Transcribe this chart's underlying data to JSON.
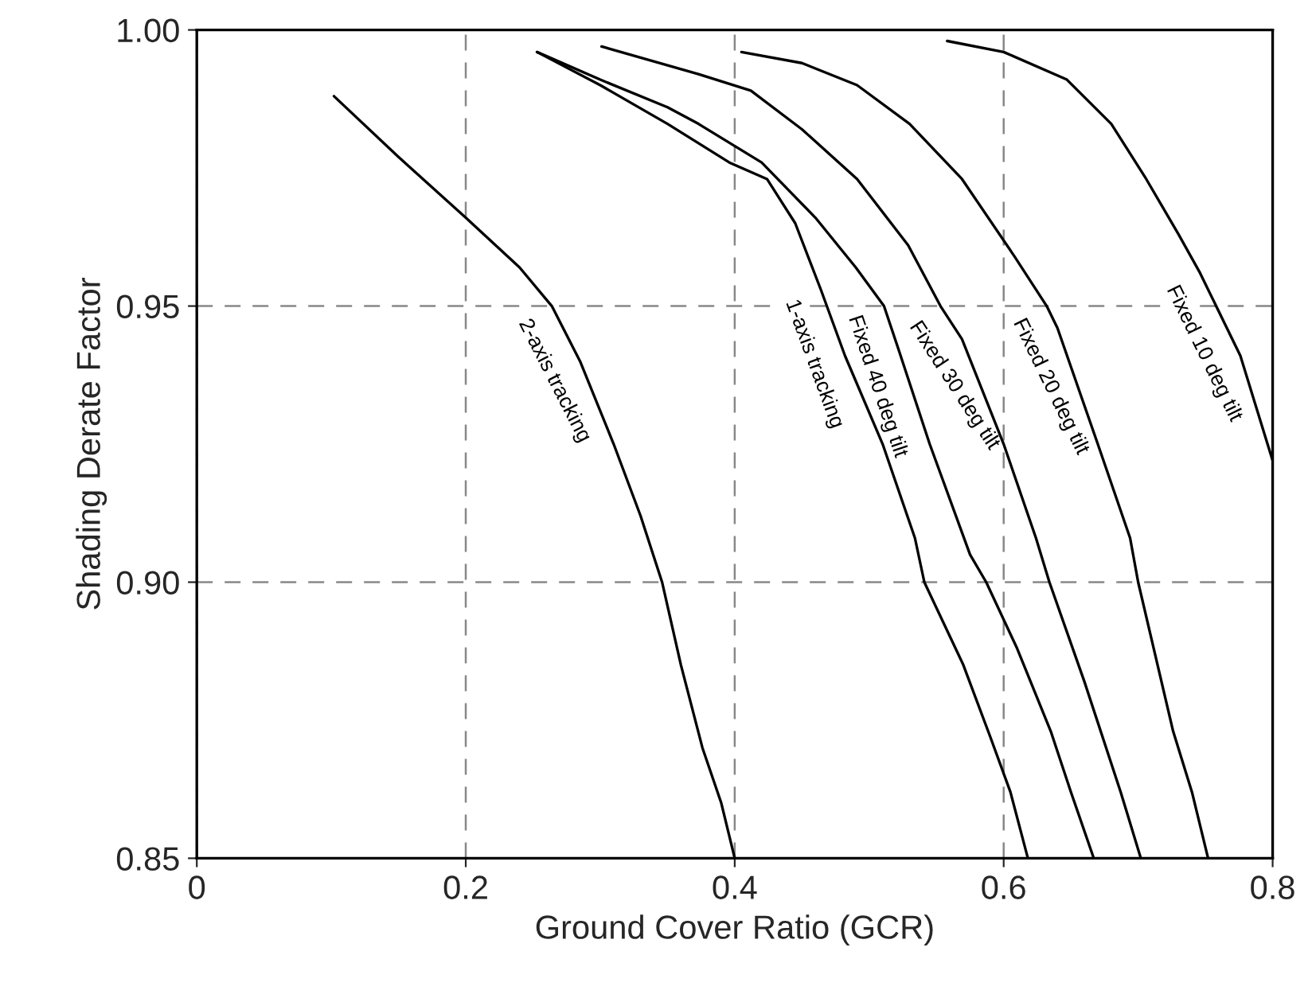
{
  "chart_data": {
    "type": "line",
    "xlabel": "Ground Cover Ratio (GCR)",
    "ylabel": "Shading Derate Factor",
    "xlim": [
      0,
      0.8
    ],
    "ylim": [
      0.85,
      1.0
    ],
    "xticks": [
      0,
      0.2,
      0.4,
      0.6,
      0.8
    ],
    "yticks": [
      {
        "value": 0.85,
        "label": "0.85"
      },
      {
        "value": 0.9,
        "label": "0.90"
      },
      {
        "value": 0.95,
        "label": "0.95"
      },
      {
        "value": 1.0,
        "label": "1.00"
      }
    ],
    "grid": true,
    "legend": false,
    "marker": "none",
    "line_style": "solid",
    "series": [
      {
        "name": "2-axis tracking",
        "color": "#000000",
        "x": [
          0.102,
          0.15,
          0.2,
          0.24,
          0.264,
          0.285,
          0.31,
          0.33,
          0.346,
          0.36,
          0.376,
          0.39,
          0.4
        ],
        "values": [
          0.988,
          0.977,
          0.966,
          0.957,
          0.95,
          0.94,
          0.925,
          0.912,
          0.9,
          0.885,
          0.87,
          0.86,
          0.85
        ]
      },
      {
        "name": "1-axis tracking",
        "color": "#000000",
        "x": [
          0.253,
          0.3,
          0.35,
          0.396,
          0.424,
          0.445,
          0.464,
          0.482,
          0.51,
          0.534,
          0.541,
          0.57,
          0.59,
          0.605,
          0.618
        ],
        "values": [
          0.996,
          0.99,
          0.983,
          0.976,
          0.973,
          0.965,
          0.953,
          0.941,
          0.925,
          0.908,
          0.9,
          0.885,
          0.872,
          0.862,
          0.85
        ]
      },
      {
        "name": "Fixed 40 deg tilt",
        "color": "#000000",
        "x": [
          0.253,
          0.3,
          0.35,
          0.373,
          0.42,
          0.46,
          0.49,
          0.511,
          0.522,
          0.545,
          0.575,
          0.587,
          0.61,
          0.635,
          0.65,
          0.667
        ],
        "values": [
          0.996,
          0.991,
          0.986,
          0.983,
          0.976,
          0.966,
          0.957,
          0.95,
          0.942,
          0.925,
          0.905,
          0.9,
          0.888,
          0.873,
          0.862,
          0.85
        ]
      },
      {
        "name": "Fixed 30 deg tilt",
        "color": "#000000",
        "x": [
          0.301,
          0.373,
          0.412,
          0.45,
          0.491,
          0.529,
          0.553,
          0.569,
          0.6,
          0.624,
          0.634,
          0.66,
          0.687,
          0.702
        ],
        "values": [
          0.997,
          0.992,
          0.989,
          0.982,
          0.973,
          0.961,
          0.95,
          0.944,
          0.925,
          0.908,
          0.9,
          0.882,
          0.862,
          0.85
        ]
      },
      {
        "name": "Fixed 20 deg tilt",
        "color": "#000000",
        "x": [
          0.405,
          0.45,
          0.491,
          0.53,
          0.569,
          0.608,
          0.632,
          0.64,
          0.67,
          0.694,
          0.7,
          0.726,
          0.74,
          0.752
        ],
        "values": [
          0.996,
          0.994,
          0.99,
          0.983,
          0.973,
          0.959,
          0.95,
          0.946,
          0.925,
          0.908,
          0.9,
          0.873,
          0.862,
          0.85
        ]
      },
      {
        "name": "Fixed 10 deg tilt",
        "color": "#000000",
        "x": [
          0.558,
          0.6,
          0.647,
          0.68,
          0.706,
          0.73,
          0.746,
          0.776,
          0.8
        ],
        "values": [
          0.998,
          0.996,
          0.991,
          0.983,
          0.973,
          0.963,
          0.956,
          0.941,
          0.922
        ]
      }
    ]
  }
}
